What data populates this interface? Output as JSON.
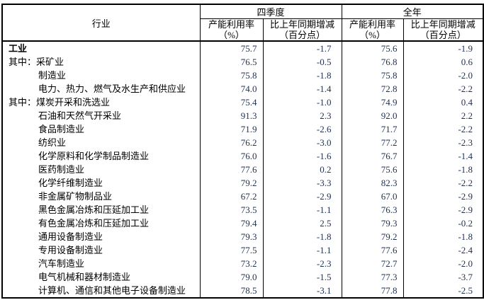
{
  "table": {
    "header": {
      "industry": "行业",
      "groups": [
        {
          "label": "四季度",
          "sub": [
            {
              "l1": "产能利用率",
              "l2": "（%）"
            },
            {
              "l1": "比上年同期增减",
              "l2": "（百分点）"
            }
          ]
        },
        {
          "label": "全年",
          "sub": [
            {
              "l1": "产能利用率",
              "l2": "（%）"
            },
            {
              "l1": "比上年同期增减",
              "l2": "（百分点）"
            }
          ]
        }
      ]
    },
    "rows": [
      {
        "prefix": "",
        "name": "工业",
        "bold": true,
        "indent": false,
        "q4_rate": "75.7",
        "q4_chg": "-1.7",
        "yr_rate": "75.6",
        "yr_chg": "-1.9"
      },
      {
        "prefix": "其中：",
        "name": "采矿业",
        "bold": false,
        "indent": false,
        "q4_rate": "76.5",
        "q4_chg": "-0.5",
        "yr_rate": "76.8",
        "yr_chg": "0.6"
      },
      {
        "prefix": "",
        "name": "制造业",
        "bold": false,
        "indent": true,
        "q4_rate": "75.8",
        "q4_chg": "-1.8",
        "yr_rate": "75.8",
        "yr_chg": "-2.0"
      },
      {
        "prefix": "",
        "name": "电力、热力、燃气及水生产和供应业",
        "bold": false,
        "indent": true,
        "q4_rate": "74.0",
        "q4_chg": "-1.4",
        "yr_rate": "72.8",
        "yr_chg": "-2.2"
      },
      {
        "prefix": "其中：",
        "name": "煤炭开采和洗选业",
        "bold": false,
        "indent": false,
        "q4_rate": "75.4",
        "q4_chg": "-1.0",
        "yr_rate": "74.9",
        "yr_chg": "0.4"
      },
      {
        "prefix": "",
        "name": "石油和天然气开采业",
        "bold": false,
        "indent": true,
        "q4_rate": "91.3",
        "q4_chg": "2.3",
        "yr_rate": "92.0",
        "yr_chg": "2.2"
      },
      {
        "prefix": "",
        "name": "食品制造业",
        "bold": false,
        "indent": true,
        "q4_rate": "71.9",
        "q4_chg": "-2.6",
        "yr_rate": "71.7",
        "yr_chg": "-2.2"
      },
      {
        "prefix": "",
        "name": "纺织业",
        "bold": false,
        "indent": true,
        "q4_rate": "76.2",
        "q4_chg": "-3.0",
        "yr_rate": "77.2",
        "yr_chg": "-2.3"
      },
      {
        "prefix": "",
        "name": "化学原料和化学制品制造业",
        "bold": false,
        "indent": true,
        "q4_rate": "76.0",
        "q4_chg": "-1.6",
        "yr_rate": "76.7",
        "yr_chg": "-1.4"
      },
      {
        "prefix": "",
        "name": "医药制造业",
        "bold": false,
        "indent": true,
        "q4_rate": "77.6",
        "q4_chg": "0.2",
        "yr_rate": "75.6",
        "yr_chg": "-1.8"
      },
      {
        "prefix": "",
        "name": "化学纤维制造业",
        "bold": false,
        "indent": true,
        "q4_rate": "79.2",
        "q4_chg": "-3.3",
        "yr_rate": "82.3",
        "yr_chg": "-2.2"
      },
      {
        "prefix": "",
        "name": "非金属矿物制品业",
        "bold": false,
        "indent": true,
        "q4_rate": "67.2",
        "q4_chg": "-2.9",
        "yr_rate": "67.0",
        "yr_chg": "-2.9"
      },
      {
        "prefix": "",
        "name": "黑色金属冶炼和压延加工业",
        "bold": false,
        "indent": true,
        "q4_rate": "73.5",
        "q4_chg": "-1.1",
        "yr_rate": "76.3",
        "yr_chg": "-2.9"
      },
      {
        "prefix": "",
        "name": "有色金属冶炼和压延加工业",
        "bold": false,
        "indent": true,
        "q4_rate": "79.4",
        "q4_chg": "2.5",
        "yr_rate": "79.3",
        "yr_chg": "-0.2"
      },
      {
        "prefix": "",
        "name": "通用设备制造业",
        "bold": false,
        "indent": true,
        "q4_rate": "79.3",
        "q4_chg": "-1.8",
        "yr_rate": "79.2",
        "yr_chg": "-1.8"
      },
      {
        "prefix": "",
        "name": "专用设备制造业",
        "bold": false,
        "indent": true,
        "q4_rate": "77.5",
        "q4_chg": "-1.1",
        "yr_rate": "77.6",
        "yr_chg": "-2.4"
      },
      {
        "prefix": "",
        "name": "汽车制造业",
        "bold": false,
        "indent": true,
        "q4_rate": "73.2",
        "q4_chg": "-2.3",
        "yr_rate": "72.7",
        "yr_chg": "-2.0"
      },
      {
        "prefix": "",
        "name": "电气机械和器材制造业",
        "bold": false,
        "indent": true,
        "q4_rate": "79.0",
        "q4_chg": "-1.5",
        "yr_rate": "77.3",
        "yr_chg": "-3.7"
      },
      {
        "prefix": "",
        "name": "计算机、通信和其他电子设备制造业",
        "bold": false,
        "indent": true,
        "q4_rate": "78.5",
        "q4_chg": "-3.1",
        "yr_rate": "77.8",
        "yr_chg": "-2.5"
      }
    ]
  }
}
